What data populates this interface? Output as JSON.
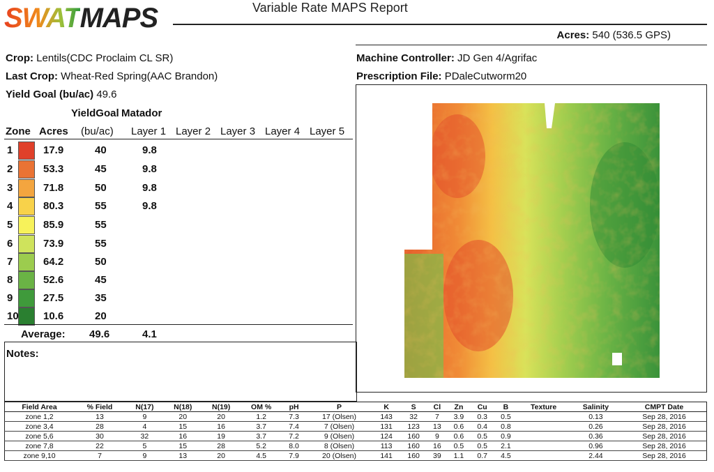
{
  "header": {
    "logo_swat": "SWAT",
    "logo_maps": "MAPS",
    "report_title": "Variable Rate MAPS Report",
    "acres_label": "Acres:",
    "acres_value": "540 (536.5 GPS)"
  },
  "info": {
    "crop_label": "Crop:",
    "crop_value": "Lentils(CDC Proclaim CL SR)",
    "last_crop_label": "Last Crop:",
    "last_crop_value": "Wheat-Red Spring(AAC Brandon)",
    "yield_goal_label": "Yield Goal (bu/ac)",
    "yield_goal_value": "49.6",
    "machine_label": "Machine Controller:",
    "machine_value": "JD Gen 4/Agrifac",
    "prescription_label": "Prescription File:",
    "prescription_value": "PDaleCutworm20"
  },
  "zone_table": {
    "top_headers": {
      "yieldgoal": "YieldGoal",
      "matador": "Matador"
    },
    "headers": {
      "zone": "Zone",
      "acres": "Acres",
      "bu_ac": "(bu/ac)",
      "layer1": "Layer 1",
      "layer2": "Layer 2",
      "layer3": "Layer 3",
      "layer4": "Layer 4",
      "layer5": "Layer 5"
    },
    "rows": [
      {
        "zone": "1",
        "acres": "17.9",
        "goal": "40",
        "layer1": "9.8",
        "color": "#e0402a"
      },
      {
        "zone": "2",
        "acres": "53.3",
        "goal": "45",
        "layer1": "9.8",
        "color": "#ea7334"
      },
      {
        "zone": "3",
        "acres": "71.8",
        "goal": "50",
        "layer1": "9.8",
        "color": "#f3a53f"
      },
      {
        "zone": "4",
        "acres": "80.3",
        "goal": "55",
        "layer1": "9.8",
        "color": "#f8d24a"
      },
      {
        "zone": "5",
        "acres": "85.9",
        "goal": "55",
        "layer1": "",
        "color": "#f7f25a"
      },
      {
        "zone": "6",
        "acres": "73.9",
        "goal": "55",
        "layer1": "",
        "color": "#cfe35c"
      },
      {
        "zone": "7",
        "acres": "64.2",
        "goal": "50",
        "layer1": "",
        "color": "#9ccc4e"
      },
      {
        "zone": "8",
        "acres": "52.6",
        "goal": "45",
        "layer1": "",
        "color": "#6ab345"
      },
      {
        "zone": "9",
        "acres": "27.5",
        "goal": "35",
        "layer1": "",
        "color": "#3f9a3b"
      },
      {
        "zone": "10",
        "acres": "10.6",
        "goal": "20",
        "layer1": "",
        "color": "#2a7f30"
      }
    ],
    "average_label": "Average:",
    "average_goal": "49.6",
    "average_layer1": "4.1"
  },
  "notes": {
    "label": "Notes:"
  },
  "soil_table": {
    "headers": [
      "Field Area",
      "% Field",
      "N(17)",
      "N(18)",
      "N(19)",
      "OM %",
      "pH",
      "P",
      "K",
      "S",
      "Cl",
      "Zn",
      "Cu",
      "B",
      "Texture",
      "Salinity",
      "CMPT Date"
    ],
    "rows": [
      [
        "zone 1,2",
        "13",
        "9",
        "20",
        "20",
        "1.2",
        "7.3",
        "17 (Olsen)",
        "143",
        "32",
        "7",
        "3.9",
        "0.3",
        "0.5",
        "",
        "0.13",
        "Sep 28, 2016"
      ],
      [
        "zone 3,4",
        "28",
        "4",
        "15",
        "16",
        "3.7",
        "7.4",
        "7 (Olsen)",
        "131",
        "123",
        "13",
        "0.6",
        "0.4",
        "0.8",
        "",
        "0.26",
        "Sep 28, 2016"
      ],
      [
        "zone 5,6",
        "30",
        "32",
        "16",
        "19",
        "3.7",
        "7.2",
        "9 (Olsen)",
        "124",
        "160",
        "9",
        "0.6",
        "0.5",
        "0.9",
        "",
        "0.36",
        "Sep 28, 2016"
      ],
      [
        "zone 7,8",
        "22",
        "5",
        "15",
        "28",
        "5.2",
        "8.0",
        "8 (Olsen)",
        "113",
        "160",
        "16",
        "0.5",
        "0.5",
        "2.1",
        "",
        "0.96",
        "Sep 28, 2016"
      ],
      [
        "zone 9,10",
        "7",
        "9",
        "13",
        "20",
        "4.5",
        "7.9",
        "20 (Olsen)",
        "141",
        "160",
        "39",
        "1.1",
        "0.7",
        "4.5",
        "",
        "2.44",
        "Sep 28, 2016"
      ]
    ]
  }
}
